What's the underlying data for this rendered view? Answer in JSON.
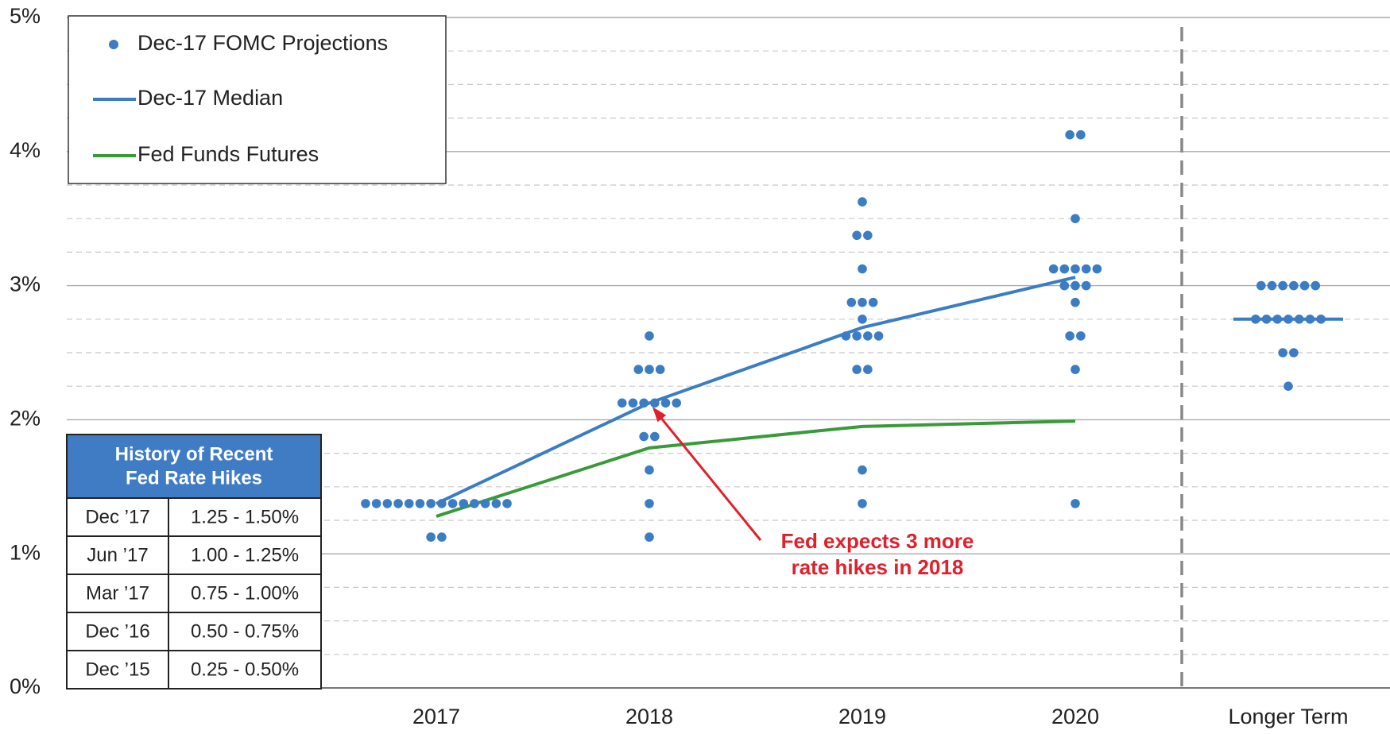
{
  "chart_data": {
    "type": "dotplot",
    "categories": [
      "2017",
      "2018",
      "2019",
      "2020",
      "Longer Term"
    ],
    "dots_name": "Dec-17 FOMC Projections",
    "dots_color": "#3b7dc4",
    "dots": [
      [
        1.375,
        1.375,
        1.375,
        1.375,
        1.375,
        1.375,
        1.375,
        1.375,
        1.375,
        1.375,
        1.375,
        1.375,
        1.375,
        1.375,
        1.125,
        1.125
      ],
      [
        2.625,
        2.375,
        2.375,
        2.375,
        2.125,
        2.125,
        2.125,
        2.125,
        2.125,
        2.125,
        1.875,
        1.875,
        1.625,
        1.375,
        1.125
      ],
      [
        3.625,
        3.375,
        3.375,
        3.125,
        2.875,
        2.875,
        2.875,
        2.75,
        2.625,
        2.625,
        2.625,
        2.625,
        2.375,
        2.375,
        1.625,
        1.375
      ],
      [
        4.125,
        4.125,
        3.5,
        3.125,
        3.125,
        3.125,
        3.125,
        3.125,
        3.0,
        3.0,
        3.0,
        2.875,
        2.625,
        2.625,
        2.375,
        1.375
      ],
      [
        3.0,
        3.0,
        3.0,
        3.0,
        3.0,
        3.0,
        2.75,
        2.75,
        2.75,
        2.75,
        2.75,
        2.75,
        2.75,
        2.5,
        2.5,
        2.25
      ]
    ],
    "series": [
      {
        "name": "Dec-17 Median",
        "color": "#3b7dc4",
        "values": [
          1.375,
          2.125,
          2.6875,
          3.0625,
          2.75
        ]
      },
      {
        "name": "Fed Funds Futures",
        "color": "#3a9a3a",
        "values": [
          1.28,
          1.79,
          1.95,
          1.99,
          null
        ]
      }
    ],
    "ylim": [
      0,
      5
    ],
    "yticks": [
      {
        "value": 0,
        "label": "0%"
      },
      {
        "value": 1,
        "label": "1%"
      },
      {
        "value": 2,
        "label": "2%"
      },
      {
        "value": 3,
        "label": "3%"
      },
      {
        "value": 4,
        "label": "4%"
      },
      {
        "value": 5,
        "label": "5%"
      }
    ],
    "minor_yticks": [
      0.25,
      0.5,
      0.75,
      1.25,
      1.5,
      1.75,
      2.25,
      2.5,
      2.75,
      3.25,
      3.5,
      3.75,
      4.25,
      4.5,
      4.75
    ],
    "grid": true,
    "divider": true,
    "annotation": {
      "lines": [
        "Fed expects 3 more",
        "rate hikes in 2018"
      ],
      "color": "#e0202a",
      "target": [
        1,
        2.125
      ]
    },
    "table": {
      "title": [
        "History of Recent",
        "Fed Rate Hikes"
      ],
      "rows": [
        [
          "Dec ’17",
          "1.25 - 1.50%"
        ],
        [
          "Jun ’17",
          "1.00 - 1.25%"
        ],
        [
          "Mar ’17",
          "0.75 - 1.00%"
        ],
        [
          "Dec ’16",
          "0.50 - 0.75%"
        ],
        [
          "Dec ’15",
          "0.25 - 0.50%"
        ]
      ]
    }
  }
}
